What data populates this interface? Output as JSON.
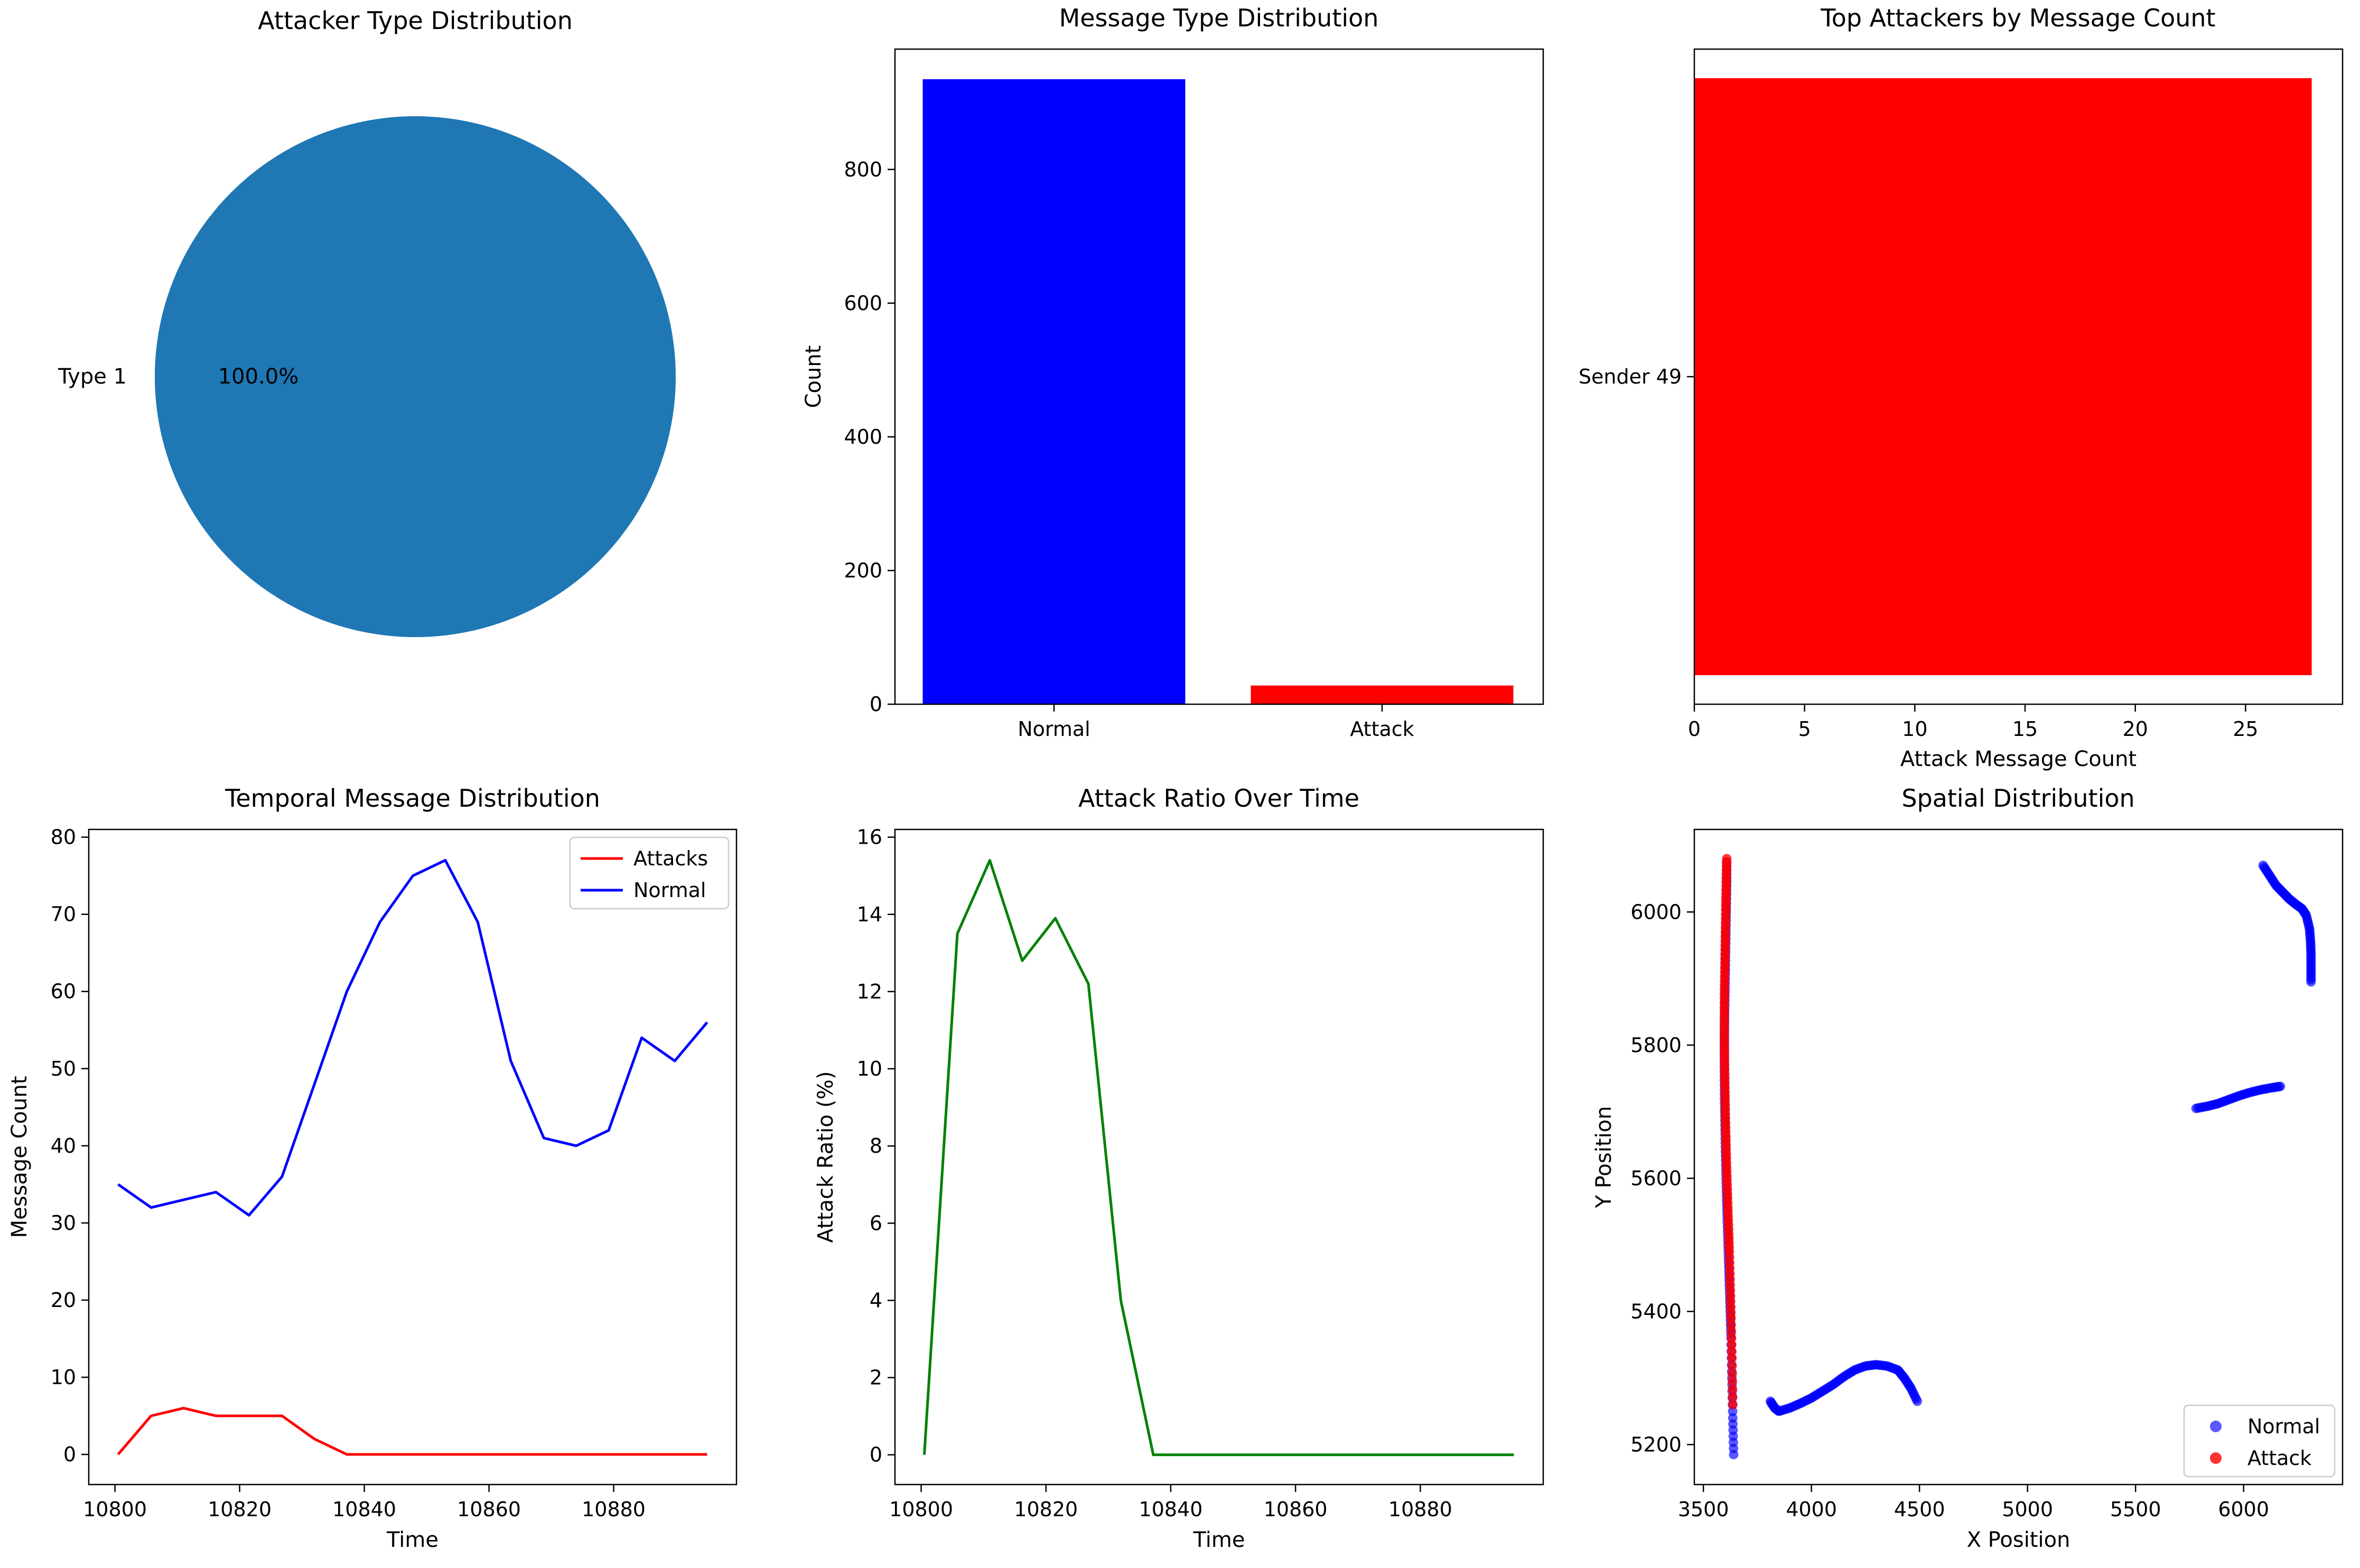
{
  "chart_data": [
    {
      "type": "pie",
      "title": "Attacker Type Distribution",
      "labels": [
        "Type 1"
      ],
      "values": [
        100
      ],
      "pct_labels": [
        "100.0%"
      ],
      "colors": [
        "#1f77b4"
      ]
    },
    {
      "type": "bar",
      "title": "Message Type Distribution",
      "xlabel": "",
      "ylabel": "Count",
      "categories": [
        "Normal",
        "Attack"
      ],
      "values": [
        935,
        28
      ],
      "colors": [
        "#0000ff",
        "#ff0000"
      ],
      "ylim": [
        0,
        980
      ],
      "yticks": [
        0,
        200,
        400,
        600,
        800
      ]
    },
    {
      "type": "bar",
      "orientation": "horizontal",
      "title": "Top Attackers by Message Count",
      "xlabel": "Attack Message Count",
      "ylabel": "",
      "categories": [
        "Sender 49"
      ],
      "values": [
        28
      ],
      "colors": [
        "#ff0000"
      ],
      "xlim": [
        0,
        29.4
      ],
      "xticks": [
        0,
        5,
        10,
        15,
        20,
        25
      ]
    },
    {
      "type": "line",
      "title": "Temporal Message Distribution",
      "xlabel": "Time",
      "ylabel": "Message Count",
      "x": [
        10800.5,
        10805.8,
        10811,
        10816.2,
        10821.5,
        10826.8,
        10832,
        10837.2,
        10842.5,
        10847.8,
        10853,
        10858.2,
        10863.5,
        10868.8,
        10874,
        10879.2,
        10884.5,
        10889.8,
        10895
      ],
      "series": [
        {
          "name": "Attacks",
          "color": "#ff0000",
          "values": [
            0,
            5,
            6,
            5,
            5,
            5,
            2,
            0,
            0,
            0,
            0,
            0,
            0,
            0,
            0,
            0,
            0,
            0,
            0
          ]
        },
        {
          "name": "Normal",
          "color": "#0000ff",
          "values": [
            35,
            32,
            33,
            34,
            31,
            36,
            48,
            60,
            69,
            75,
            77,
            69,
            51,
            41,
            40,
            42,
            54,
            51,
            56
          ]
        }
      ],
      "xlim": [
        10795.8,
        10899.7
      ],
      "ylim": [
        -3.9,
        81
      ],
      "xticks": [
        10800,
        10820,
        10840,
        10860,
        10880
      ],
      "yticks": [
        0,
        10,
        20,
        30,
        40,
        50,
        60,
        70,
        80
      ],
      "legend": "top-right"
    },
    {
      "type": "line",
      "title": "Attack Ratio Over Time",
      "xlabel": "Time",
      "ylabel": "Attack Ratio (%)",
      "x": [
        10800.5,
        10805.8,
        10811,
        10816.2,
        10821.5,
        10826.8,
        10832,
        10837.2,
        10842.5,
        10847.8,
        10853,
        10858.2,
        10863.5,
        10868.8,
        10874,
        10879.2,
        10884.5,
        10889.8,
        10895
      ],
      "series": [
        {
          "color": "#008000",
          "values": [
            0,
            13.5,
            15.4,
            12.8,
            13.9,
            12.2,
            4.0,
            0,
            0,
            0,
            0,
            0,
            0,
            0,
            0,
            0,
            0,
            0,
            0
          ]
        }
      ],
      "xlim": [
        10795.8,
        10899.7
      ],
      "ylim": [
        -0.77,
        16.2
      ],
      "xticks": [
        10800,
        10820,
        10840,
        10860,
        10880
      ],
      "yticks": [
        0,
        2,
        4,
        6,
        8,
        10,
        12,
        14,
        16
      ]
    },
    {
      "type": "scatter",
      "title": "Spatial Distribution",
      "xlabel": "X Position",
      "ylabel": "Y Position",
      "xlim": [
        3458,
        6458
      ],
      "ylim": [
        5140,
        6124
      ],
      "xticks": [
        3500,
        4000,
        4500,
        5000,
        5500,
        6000
      ],
      "yticks": [
        5200,
        5400,
        5600,
        5800,
        6000
      ],
      "legend": "bottom-right",
      "series": [
        {
          "name": "Normal",
          "color": "#0000ff",
          "alpha": 0.65,
          "segments": [
            {
              "x": [
                3608,
                3608,
                3606,
                3604,
                3602,
                3600,
                3598,
                3597,
                3597,
                3598,
                3600,
                3602,
                3605,
                3608,
                3612,
                3616,
                3620,
                3624,
                3628,
                3632,
                3636,
                3640
              ],
              "y": [
                6075,
                6040,
                6000,
                5960,
                5920,
                5880,
                5840,
                5800,
                5760,
                5720,
                5680,
                5640,
                5600,
                5560,
                5520,
                5480,
                5440,
                5400,
                5360,
                5300,
                5240,
                5185
              ]
            },
            {
              "x": [
                3810,
                3830,
                3850,
                3900,
                3950,
                4000,
                4050,
                4100,
                4150,
                4200,
                4250,
                4300,
                4350,
                4400,
                4430,
                4460,
                4490
              ],
              "y": [
                5265,
                5255,
                5250,
                5255,
                5262,
                5270,
                5280,
                5290,
                5302,
                5312,
                5318,
                5320,
                5318,
                5312,
                5300,
                5285,
                5265
              ]
            },
            {
              "x": [
                5780,
                5830,
                5880,
                5930,
                5980,
                6030,
                6080,
                6130,
                6170
              ],
              "y": [
                5705,
                5708,
                5712,
                5718,
                5724,
                5729,
                5733,
                5736,
                5738
              ]
            },
            {
              "x": [
                6090,
                6120,
                6150,
                6180,
                6210,
                6240,
                6270,
                6290,
                6305,
                6310,
                6312,
                6312,
                6312
              ],
              "y": [
                6070,
                6055,
                6040,
                6030,
                6020,
                6012,
                6005,
                5995,
                5975,
                5955,
                5935,
                5915,
                5895
              ]
            }
          ]
        },
        {
          "name": "Attack",
          "color": "#ff0000",
          "alpha": 0.8,
          "segments": [
            {
              "x": [
                3608,
                3606,
                3604,
                3602,
                3600,
                3598,
                3597,
                3597,
                3598,
                3600,
                3602,
                3605,
                3608,
                3612,
                3616,
                3620,
                3624,
                3628,
                3632,
                3636
              ],
              "y": [
                6080,
                6045,
                6010,
                5970,
                5930,
                5890,
                5850,
                5810,
                5770,
                5730,
                5690,
                5650,
                5610,
                5570,
                5530,
                5490,
                5440,
                5390,
                5330,
                5260
              ]
            }
          ]
        }
      ]
    }
  ]
}
